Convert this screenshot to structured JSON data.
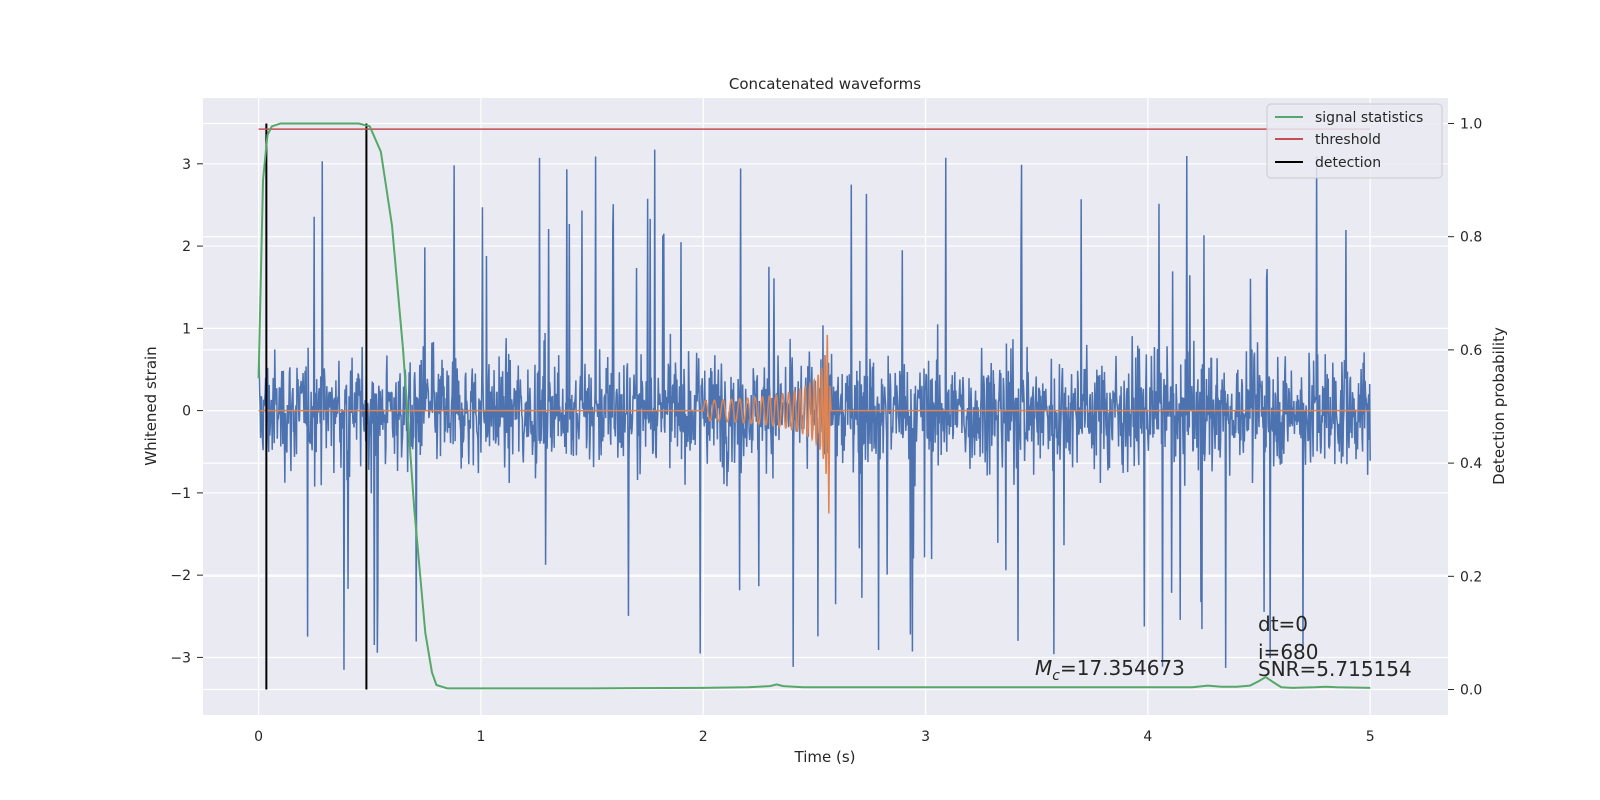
{
  "chart_data": {
    "type": "line",
    "title": "Concatenated waveforms",
    "xlabel": "Time (s)",
    "ylabel": "Whitened strain",
    "y2label": "Detection probability",
    "xlim": [
      -0.25,
      5.35
    ],
    "ylim": [
      -3.7,
      3.8
    ],
    "y2lim": [
      -0.045,
      1.045
    ],
    "xticks": [
      0,
      1,
      2,
      3,
      4,
      5
    ],
    "yticks": [
      -3,
      -2,
      -1,
      0,
      1,
      2,
      3
    ],
    "yticklabels": [
      "−3",
      "−2",
      "−1",
      "0",
      "1",
      "2",
      "3"
    ],
    "y2ticks": [
      0.0,
      0.2,
      0.4,
      0.6,
      0.8,
      1.0
    ],
    "y2ticklabels": [
      "0.0",
      "0.2",
      "0.4",
      "0.6",
      "0.8",
      "1.0"
    ],
    "grid": true,
    "legend_position": "top-right",
    "colors": {
      "strain": "#4c72b0",
      "template": "#dd8452",
      "signal_statistics": "#55a868",
      "threshold": "#c44e52",
      "detection": "#000000",
      "axes_bg": "#eaeaf2",
      "grid": "#ffffff"
    },
    "series": [
      {
        "role": "strain",
        "description_of_values": "dense noise-like whitened strain samples spanning 0 to 5 s, bulk amplitude about ±1.3, spikes reaching about 3.4 and −3.35",
        "x_range": [
          0,
          5
        ],
        "bulk_amplitude": 1.3,
        "max_value": 3.4,
        "min_value": -3.35
      },
      {
        "role": "template",
        "description_of_values": "chirp waveform, zero outside 2.0–2.57 s, growing amplitude and frequency up to merger near 2.56 s",
        "x_start": 2.0,
        "x_merger": 2.56,
        "start_amplitude": 0.12,
        "peak_amplitude": 1.05,
        "min_value": -1.25
      },
      {
        "name": "signal statistics",
        "axis": "right",
        "x": [
          0,
          0.02,
          0.04,
          0.06,
          0.1,
          0.2,
          0.3,
          0.4,
          0.45,
          0.5,
          0.55,
          0.6,
          0.65,
          0.7,
          0.75,
          0.78,
          0.8,
          0.85,
          1.0,
          1.5,
          2.0,
          2.2,
          2.3,
          2.33,
          2.36,
          2.45,
          3.0,
          3.5,
          4.0,
          4.2,
          4.27,
          4.33,
          4.4,
          4.46,
          4.5,
          4.53,
          4.56,
          4.6,
          4.65,
          4.75,
          4.8,
          4.85,
          5.0
        ],
        "y": [
          0.55,
          0.9,
          0.98,
          0.995,
          1.0,
          1.0,
          1.0,
          1.0,
          1.0,
          0.995,
          0.95,
          0.82,
          0.6,
          0.32,
          0.1,
          0.03,
          0.008,
          0.002,
          0.002,
          0.002,
          0.003,
          0.004,
          0.006,
          0.009,
          0.006,
          0.004,
          0.004,
          0.004,
          0.004,
          0.004,
          0.007,
          0.005,
          0.005,
          0.007,
          0.015,
          0.022,
          0.014,
          0.004,
          0.003,
          0.004,
          0.005,
          0.004,
          0.003
        ]
      },
      {
        "name": "threshold",
        "axis": "right",
        "x": [
          0,
          5
        ],
        "y": [
          0.99,
          0.99
        ]
      },
      {
        "name": "detection",
        "axis": "right",
        "x_positions": [
          0.035,
          0.485
        ],
        "y": [
          0.0,
          1.0
        ]
      }
    ],
    "legend": [
      "signal statistics",
      "threshold",
      "detection"
    ],
    "annotations": {
      "mc_symbol": "M",
      "mc_subscript": "c",
      "mc_value": "=17.354673",
      "dt": "dt=0",
      "index": "i=680",
      "snr": "SNR=5.715154"
    }
  }
}
